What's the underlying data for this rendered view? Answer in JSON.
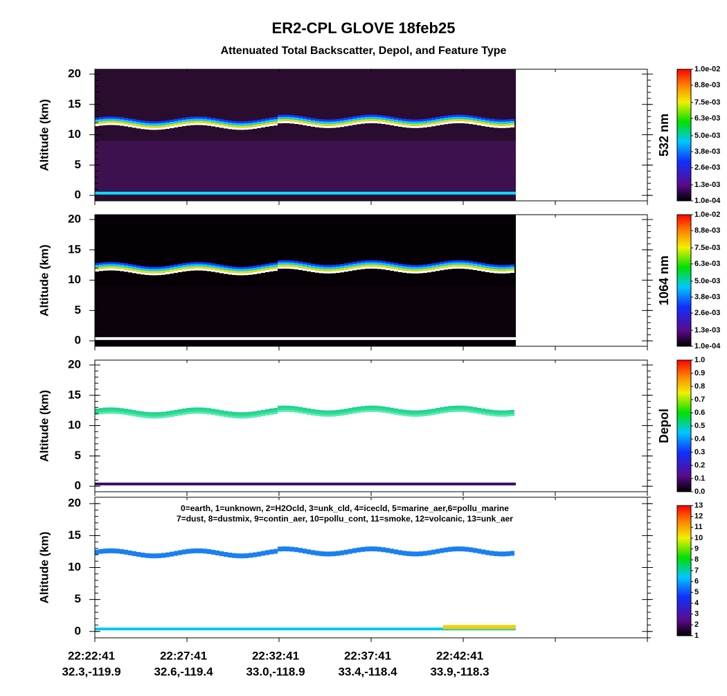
{
  "header": {
    "title": "ER2-CPL  GLOVE  18feb25",
    "subtitle": "Attenuated Total Backscatter, Depol, and Feature Type"
  },
  "chart_data": [
    {
      "type": "heatmap",
      "ylabel": "Altitude (km)",
      "ylim": [
        -0.9,
        20.8
      ],
      "yticks": [
        0,
        5,
        10,
        15,
        20
      ],
      "colorbar": {
        "label": "532 nm",
        "clim": [
          0.0001,
          0.01
        ],
        "ticks": [
          {
            "value": 0.01,
            "label": "1.0e-02"
          },
          {
            "value": 0.0088,
            "label": "8.8e-03"
          },
          {
            "value": 0.0075,
            "label": "7.5e-03"
          },
          {
            "value": 0.0063,
            "label": "6.3e-03"
          },
          {
            "value": 0.005,
            "label": "5.0e-03"
          },
          {
            "value": 0.0038,
            "label": "3.8e-03"
          },
          {
            "value": 0.0026,
            "label": "2.6e-03"
          },
          {
            "value": 0.0013,
            "label": "1.3e-03"
          },
          {
            "value": 0.0001,
            "label": "1.0e-04"
          }
        ]
      }
    },
    {
      "type": "heatmap",
      "ylabel": "Altitude (km)",
      "ylim": [
        -0.9,
        20.8
      ],
      "yticks": [
        0,
        5,
        10,
        15,
        20
      ],
      "colorbar": {
        "label": "1064 nm",
        "clim": [
          0.0001,
          0.01
        ],
        "ticks": [
          {
            "value": 0.01,
            "label": "1.0e-02"
          },
          {
            "value": 0.0088,
            "label": "8.8e-03"
          },
          {
            "value": 0.0075,
            "label": "7.5e-03"
          },
          {
            "value": 0.0063,
            "label": "6.3e-03"
          },
          {
            "value": 0.005,
            "label": "5.0e-03"
          },
          {
            "value": 0.0038,
            "label": "3.8e-03"
          },
          {
            "value": 0.0026,
            "label": "2.6e-03"
          },
          {
            "value": 0.0013,
            "label": "1.3e-03"
          },
          {
            "value": 0.0001,
            "label": "1.0e-04"
          }
        ]
      }
    },
    {
      "type": "heatmap",
      "ylabel": "Altitude (km)",
      "ylim": [
        -0.9,
        20.8
      ],
      "yticks": [
        0,
        5,
        10,
        15,
        20
      ],
      "colorbar": {
        "label": "Depol",
        "clim": [
          0,
          1
        ],
        "ticks": [
          {
            "value": 1,
            "label": "1.0"
          },
          0.9,
          0.8,
          0.7,
          0.6,
          0.5,
          0.4,
          0.3,
          0.2,
          0.1,
          {
            "value": 0,
            "label": "0.0"
          }
        ]
      }
    },
    {
      "type": "heatmap",
      "ylabel": "Altitude (km)",
      "ylim": [
        -1,
        21
      ],
      "yticks": [
        0,
        5,
        10,
        15,
        20
      ],
      "colorbar": {
        "clim": [
          1,
          13
        ],
        "ticks": [
          13,
          12,
          11,
          10,
          9,
          8,
          7,
          6,
          5,
          4,
          3,
          2,
          1
        ]
      },
      "annotations": [
        "0=earth, 1=unknown, 2=H2Ocld, 3=unk_cld, 4=icecld, 5=marine_aer,6=pollu_marine",
        "7=dust, 8=dustmix, 9=contin_aer, 10=pollu_cont, 11=smoke, 12=volcanic, 13=unk_aer"
      ],
      "x_tick_labels": [
        {
          "time": "22:22:41",
          "coords": "32.3,-119.9"
        },
        {
          "time": "22:27:41",
          "coords": "32.6,-119.4"
        },
        {
          "time": "22:32:41",
          "coords": "33.0,-118.9"
        },
        {
          "time": "22:37:41",
          "coords": "33.4,-118.4"
        },
        {
          "time": "22:42:41",
          "coords": "33.9,-118.3"
        }
      ]
    }
  ]
}
